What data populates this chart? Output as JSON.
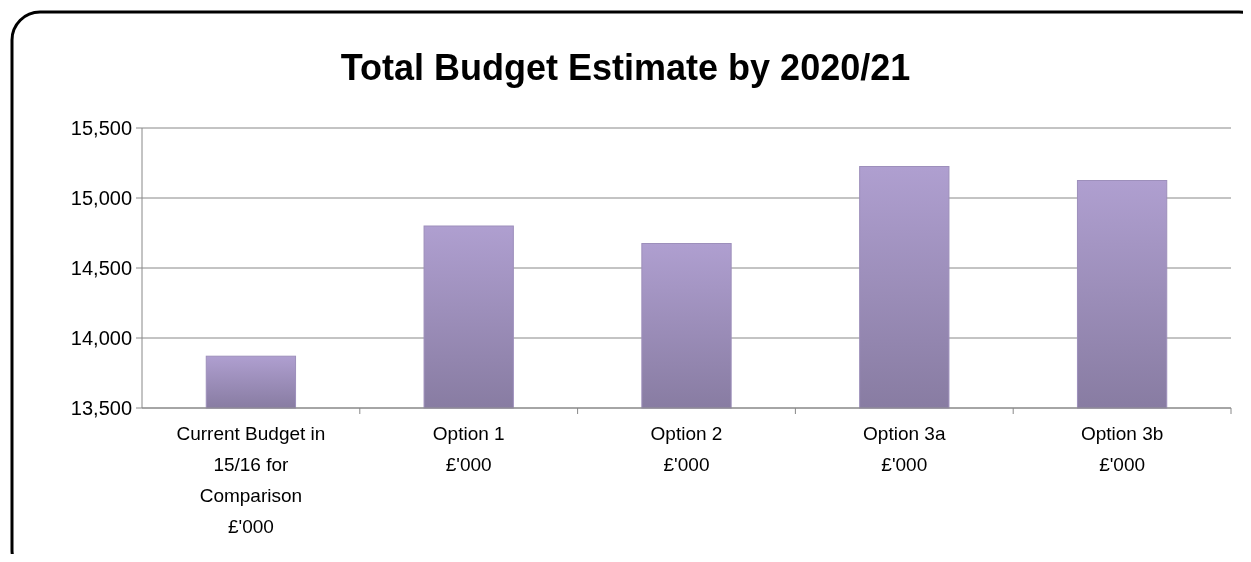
{
  "chart_data": {
    "type": "bar",
    "title": "Total Budget Estimate by 2020/21",
    "categories": [
      "Current Budget in\n15/16 for\nComparison\n£'000",
      "Option 1\n£'000",
      "Option 2\n£'000",
      "Option 3a\n£'000",
      "Option 3b\n£'000"
    ],
    "values": [
      13870,
      14800,
      14675,
      15225,
      15125
    ],
    "color": "#9d8fbb",
    "ylim": [
      13500,
      15500
    ],
    "yticks": [
      {
        "value": 13500,
        "label": "13,500"
      },
      {
        "value": 14000,
        "label": "14,000"
      },
      {
        "value": 14500,
        "label": "14,500"
      },
      {
        "value": 15000,
        "label": "15,000"
      },
      {
        "value": 15500,
        "label": "15,500"
      }
    ],
    "grid": "y"
  }
}
